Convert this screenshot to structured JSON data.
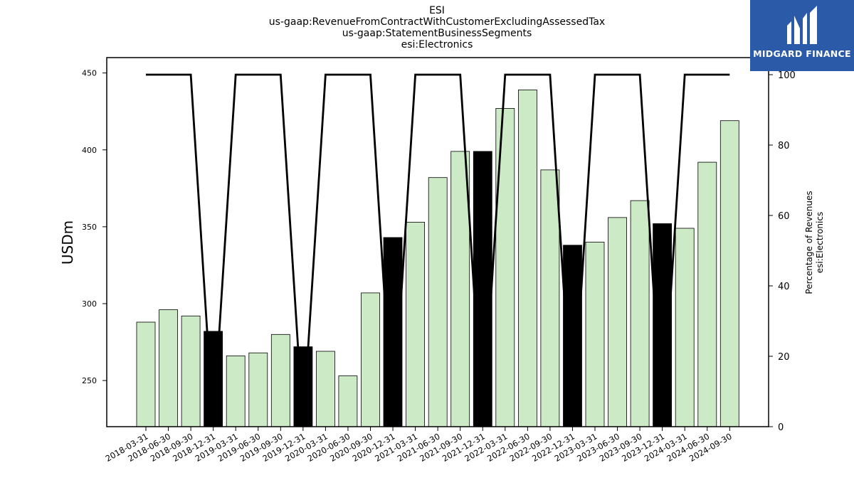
{
  "title_lines": [
    "ESI",
    "us-gaap:RevenueFromContractWithCustomerExcludingAssessedTax",
    "us-gaap:StatementBusinessSegments",
    "esi:Electronics"
  ],
  "logo": {
    "text": "MIDGARD FINANCE",
    "color": "#2b5aa8"
  },
  "chart_data": {
    "type": "bar",
    "categories": [
      "2018-03-31",
      "2018-06-30",
      "2018-09-30",
      "2018-12-31",
      "2019-03-31",
      "2019-06-30",
      "2019-09-30",
      "2019-12-31",
      "2020-03-31",
      "2020-06-30",
      "2020-09-30",
      "2020-12-31",
      "2021-03-31",
      "2021-06-30",
      "2021-09-30",
      "2021-12-31",
      "2022-03-31",
      "2022-06-30",
      "2022-09-30",
      "2022-12-31",
      "2023-03-31",
      "2023-06-30",
      "2023-09-30",
      "2023-12-31",
      "2024-03-31",
      "2024-06-30",
      "2024-09-30"
    ],
    "values": [
      288,
      296,
      292,
      282,
      266,
      268,
      280,
      272,
      269,
      253,
      307,
      343,
      353,
      382,
      399,
      399,
      427,
      439,
      387,
      338,
      340,
      356,
      367,
      352,
      349,
      392,
      419
    ],
    "highlight": [
      false,
      false,
      false,
      true,
      false,
      false,
      false,
      true,
      false,
      false,
      false,
      true,
      false,
      false,
      false,
      true,
      false,
      false,
      false,
      true,
      false,
      false,
      false,
      true,
      false,
      false,
      false
    ],
    "bar_color": "#cdeac6",
    "highlight_color": "#000000",
    "ylabel": "USDm",
    "ylim": [
      220,
      460
    ],
    "yticks": [
      250,
      300,
      350,
      400,
      450
    ],
    "secondary": {
      "ylabel_lines": [
        "Percentage of Revenues",
        "esi:Electronics"
      ],
      "ylim": [
        0,
        100
      ],
      "yticks": [
        0,
        20,
        40,
        60,
        80,
        100
      ],
      "values": [
        100,
        100,
        100,
        0,
        100,
        100,
        100,
        0,
        100,
        100,
        100,
        0,
        100,
        100,
        100,
        0,
        100,
        100,
        100,
        0,
        100,
        100,
        100,
        0,
        100,
        100,
        100
      ]
    }
  }
}
